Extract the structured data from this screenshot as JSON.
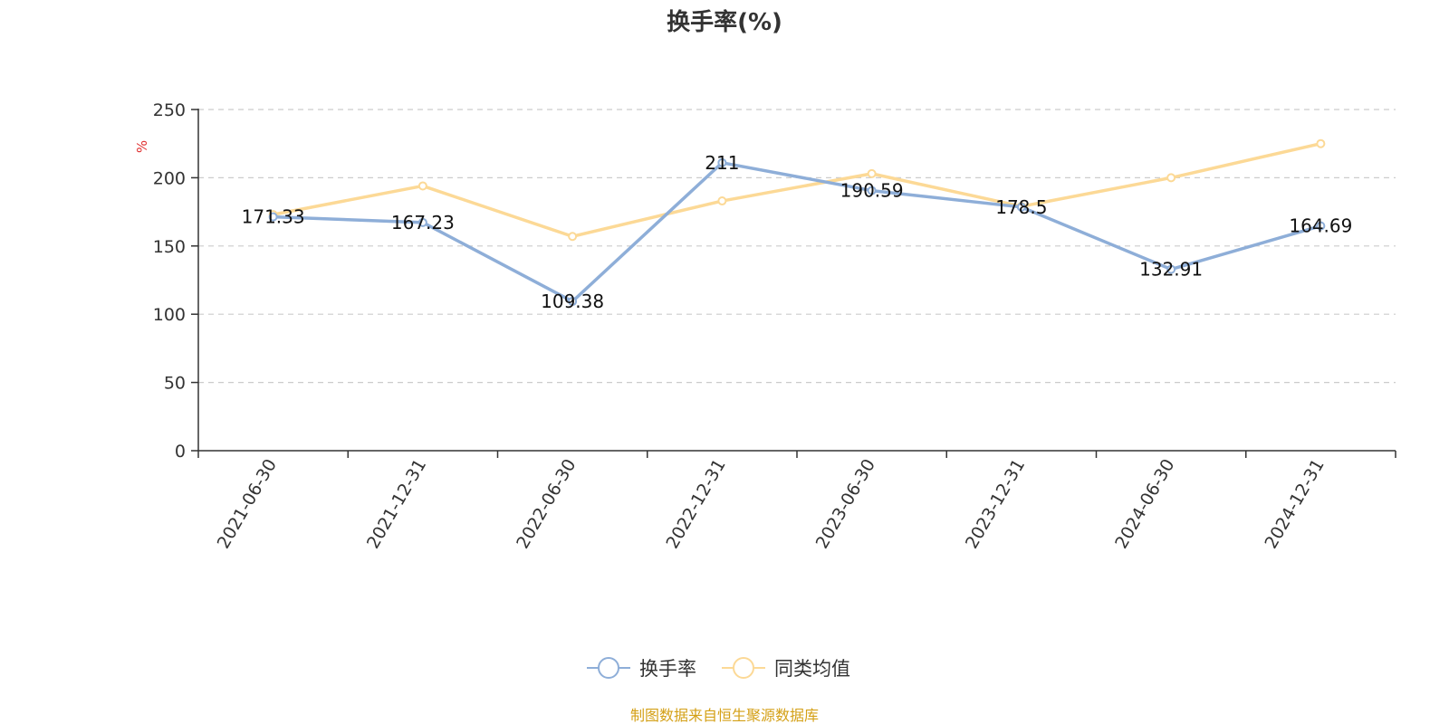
{
  "chart_data": {
    "type": "line",
    "title": "换手率(%)",
    "ylabel": "%",
    "xlabel": "",
    "ylim": [
      0,
      250
    ],
    "yticks": [
      0,
      50,
      100,
      150,
      200,
      250
    ],
    "grid": true,
    "legend_position": "bottom-center",
    "categories": [
      "2021-06-30",
      "2021-12-31",
      "2022-06-30",
      "2022-12-31",
      "2023-06-30",
      "2023-12-31",
      "2024-06-30",
      "2024-12-31"
    ],
    "series": [
      {
        "name": "换手率",
        "color": "#8eaed8",
        "values": [
          171.33,
          167.23,
          109.38,
          211,
          190.59,
          178.5,
          132.91,
          164.69
        ],
        "labels": [
          "171.33",
          "167.23",
          "109.38",
          "211",
          "190.59",
          "178.5",
          "132.91",
          "164.69"
        ]
      },
      {
        "name": "同类均值",
        "color": "#fcd996",
        "values": [
          173,
          194,
          157,
          183,
          203,
          179,
          200,
          225
        ]
      }
    ],
    "source": "制图数据来自恒生聚源数据库",
    "source_color": "#d4a017",
    "unit_color": "#e03030"
  }
}
